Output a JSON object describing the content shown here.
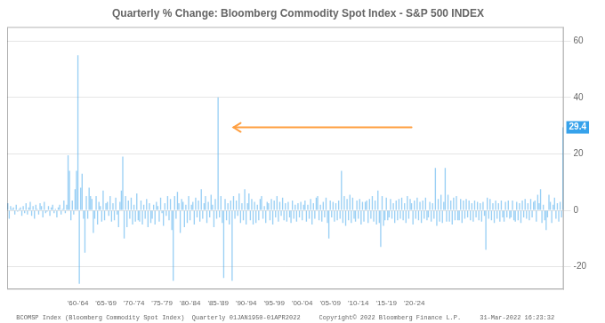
{
  "chart_data": {
    "type": "bar",
    "title": "Quarterly % Change: Bloomberg Commodity Spot Index - S&P 500 INDEX",
    "xlabel": "BCOMSP Index (Bloomberg Commodity Spot Index)  Quarterly 01JAN1950-01APR2022     Copyright© 2022 Bloomberg Finance L.P.     31-Mar-2022 16:23:32",
    "categories": [
      null,
      null,
      null,
      null,
      null,
      null,
      null,
      null,
      null,
      null,
      null,
      null,
      null,
      null,
      null,
      null,
      null,
      null,
      null,
      null,
      null,
      null,
      null,
      null,
      null,
      null,
      null,
      null,
      null,
      null,
      null,
      null,
      null,
      null,
      null,
      null,
      null,
      null,
      null,
      null,
      null,
      null,
      null,
      null,
      null,
      null,
      null,
      null,
      null,
      null,
      "'60-'64",
      null,
      null,
      null,
      null,
      null,
      null,
      null,
      null,
      null,
      null,
      null,
      null,
      null,
      null,
      null,
      null,
      null,
      null,
      null,
      "'65-'69",
      null,
      null,
      null,
      null,
      null,
      null,
      null,
      null,
      null,
      null,
      null,
      null,
      null,
      null,
      null,
      null,
      null,
      null,
      null,
      "'70-'74",
      null,
      null,
      null,
      null,
      null,
      null,
      null,
      null,
      null,
      null,
      null,
      null,
      null,
      null,
      null,
      null,
      null,
      null,
      null,
      "'75-'79",
      null,
      null,
      null,
      null,
      null,
      null,
      null,
      null,
      null,
      null,
      null,
      null,
      null,
      null,
      null,
      null,
      null,
      null,
      null,
      "'80-'84",
      null,
      null,
      null,
      null,
      null,
      null,
      null,
      null,
      null,
      null,
      null,
      null,
      null,
      null,
      null,
      null,
      null,
      null,
      null,
      "'85-'89",
      null,
      null,
      null,
      null,
      null,
      null,
      null,
      null,
      null,
      null,
      null,
      null,
      null,
      null,
      null,
      null,
      null,
      null,
      null,
      "'90-'94",
      null,
      null,
      null,
      null,
      null,
      null,
      null,
      null,
      null,
      null,
      null,
      null,
      null,
      null,
      null,
      null,
      null,
      null,
      null,
      "'95-'99",
      null,
      null,
      null,
      null,
      null,
      null,
      null,
      null,
      null,
      null,
      null,
      null,
      null,
      null,
      null,
      null,
      null,
      null,
      null,
      "'00-'04",
      null,
      null,
      null,
      null,
      null,
      null,
      null,
      null,
      null,
      null,
      null,
      null,
      null,
      null,
      null,
      null,
      null,
      null,
      null,
      "'05-'09",
      null,
      null,
      null,
      null,
      null,
      null,
      null,
      null,
      null,
      null,
      null,
      null,
      null,
      null,
      null,
      null,
      null,
      null,
      null,
      "'10-'14",
      null,
      null,
      null,
      null,
      null,
      null,
      null,
      null,
      null,
      null,
      null,
      null,
      null,
      null,
      null,
      null,
      null,
      null,
      null,
      "'15-'19",
      null,
      null,
      null,
      null,
      null,
      null,
      null,
      null,
      null,
      null,
      null,
      null,
      null,
      null,
      null,
      null,
      null,
      null,
      null,
      "'20-'24",
      null,
      null,
      null,
      null,
      null,
      null,
      null,
      null,
      null,
      null,
      null,
      null,
      null,
      null,
      null,
      null,
      null,
      null,
      null,
      null,
      null,
      null,
      null,
      null,
      null,
      null,
      null,
      null,
      null,
      null,
      null,
      null,
      null,
      null,
      null,
      null,
      null,
      null,
      null,
      null,
      null,
      null,
      null,
      null,
      null,
      null,
      null,
      null,
      null,
      null,
      null,
      null,
      null,
      null,
      null,
      null,
      null,
      null,
      null,
      null,
      null,
      null,
      null,
      null,
      null,
      null,
      null,
      null,
      null,
      null,
      null,
      null,
      null,
      null,
      null,
      null,
      null,
      null,
      null,
      null,
      null,
      null,
      null,
      null,
      null,
      null,
      null,
      null,
      null,
      null,
      null,
      null,
      null,
      null,
      null,
      null,
      null,
      null,
      null,
      null,
      null,
      null,
      null,
      null,
      null,
      null
    ],
    "values": [
      2.5,
      -3.0,
      1.5,
      0.5,
      1.0,
      -1.5,
      2.0,
      -0.5,
      0.5,
      1.0,
      -2.0,
      1.5,
      -1.0,
      2.5,
      -1.5,
      1.0,
      3.0,
      -2.0,
      1.5,
      -3.0,
      2.0,
      0.5,
      -1.5,
      2.5,
      1.5,
      -2.5,
      3.0,
      -1.0,
      -0.5,
      1.5,
      -2.0,
      1.0,
      2.0,
      -1.0,
      0.5,
      -2.5,
      1.0,
      2.0,
      -1.5,
      0.5,
      3.5,
      -1.0,
      2.0,
      19.5,
      14.0,
      -3.5,
      3.5,
      -1.5,
      7.5,
      14.0,
      55.0,
      -26.0,
      8.0,
      13.0,
      -3.0,
      -15.0,
      5.0,
      -3.0,
      8.0,
      5.0,
      4.0,
      -8.0,
      -3.0,
      5.0,
      -5.0,
      3.0,
      1.5,
      -4.0,
      7.0,
      -3.5,
      2.5,
      3.0,
      -2.0,
      5.0,
      -4.0,
      2.5,
      -3.5,
      4.5,
      -1.5,
      -6.0,
      3.0,
      7.0,
      19.0,
      -10.0,
      5.0,
      -6.0,
      3.5,
      -3.0,
      4.5,
      -5.0,
      2.0,
      -4.0,
      6.0,
      -3.5,
      -4.0,
      3.5,
      -5.0,
      2.0,
      -3.0,
      4.0,
      -6.0,
      2.5,
      -4.5,
      -3.0,
      2.0,
      -5.0,
      3.0,
      1.5,
      -4.0,
      4.5,
      -1.0,
      -5.5,
      2.5,
      -2.0,
      5.0,
      -3.5,
      4.0,
      -7.0,
      -25.0,
      5.0,
      -3.0,
      6.5,
      2.5,
      -8.0,
      4.0,
      3.0,
      -6.0,
      2.0,
      -4.5,
      5.0,
      -3.5,
      2.0,
      3.0,
      -5.0,
      4.5,
      -2.5,
      3.5,
      -4.0,
      7.5,
      -3.0,
      2.5,
      5.0,
      -4.5,
      3.0,
      -2.5,
      5.5,
      2.0,
      -6.0,
      4.0,
      -3.0,
      40.0,
      -2.5,
      5.0,
      -4.5,
      -24.0,
      4.0,
      -3.5,
      2.5,
      -5.0,
      3.5,
      -25.0,
      5.0,
      -3.0,
      3.5,
      -2.0,
      6.0,
      -4.5,
      2.5,
      -3.5,
      7.5,
      -5.0,
      2.5,
      6.0,
      -3.5,
      4.0,
      -5.0,
      3.0,
      -4.5,
      2.0,
      -3.5,
      4.0,
      5.0,
      -3.0,
      1.5,
      -4.5,
      3.0,
      2.5,
      -3.5,
      4.0,
      -5.0,
      3.5,
      -2.5,
      5.0,
      -4.0,
      3.0,
      -2.0,
      4.5,
      -3.5,
      2.5,
      -4.0,
      3.0,
      -2.5,
      -4.5,
      3.5,
      -3.0,
      2.0,
      -4.0,
      2.5,
      -2.5,
      3.0,
      -3.5,
      2.0,
      3.5,
      -4.0,
      2.0,
      -3.0,
      4.0,
      -5.0,
      2.5,
      -3.0,
      4.5,
      5.0,
      -3.5,
      2.0,
      -4.0,
      3.0,
      -2.5,
      4.5,
      -4.5,
      -10.0,
      3.5,
      -2.5,
      3.0,
      -4.0,
      2.5,
      -3.5,
      3.5,
      -3.0,
      14.0,
      -4.5,
      5.0,
      -5.5,
      4.0,
      -3.5,
      5.5,
      -4.5,
      4.5,
      -3.0,
      -4.0,
      3.5,
      -3.0,
      4.0,
      -5.0,
      3.0,
      -4.0,
      3.0,
      3.5,
      -4.5,
      4.0,
      -3.0,
      5.0,
      -4.0,
      3.5,
      -5.0,
      7.0,
      -4.5,
      -13.0,
      5.0,
      -5.5,
      -3.5,
      4.5,
      -3.5,
      -2.5,
      4.0,
      -3.0,
      2.5,
      -4.5,
      3.5,
      -3.5,
      4.0,
      -3.0,
      4.5,
      -3.5,
      2.5,
      -4.5,
      5.0,
      -3.0,
      4.0,
      2.5,
      -5.0,
      3.5,
      -3.0,
      4.5,
      -3.5,
      3.0,
      -4.5,
      3.5,
      -3.0,
      4.5,
      -3.5,
      -2.5,
      3.0,
      -4.0,
      2.5,
      -3.0,
      15.0,
      -5.5,
      4.0,
      -4.0,
      5.5,
      -4.5,
      3.0,
      15.0,
      -4.0,
      5.5,
      -4.0,
      3.5,
      -5.0,
      4.5,
      -3.5,
      5.0,
      -3.5,
      -3.5,
      4.0,
      -4.5,
      3.5,
      -3.0,
      4.0,
      -2.5,
      3.5,
      -3.5,
      2.5,
      -4.0,
      3.5,
      -2.5,
      3.0,
      -3.5,
      2.5,
      -4.0,
      3.0,
      -2.0,
      -14.0,
      4.5,
      -3.0,
      4.0,
      -3.5,
      2.5,
      -4.5,
      3.5,
      -3.0,
      2.5,
      -4.0,
      3.5,
      -2.5,
      -4.0,
      3.0,
      -2.5,
      3.5,
      -3.0,
      -2.5,
      3.5,
      -3.5,
      -4.0,
      3.0,
      -3.5,
      2.5,
      -4.5,
      3.5,
      -2.5,
      4.0,
      -3.0,
      2.5,
      -3.5,
      4.0,
      -2.5,
      3.0,
      3.5,
      -4.0,
      5.5,
      2.5,
      7.5,
      -4.5,
      2.0,
      -3.5,
      -7.0,
      -2.5,
      5.5,
      3.0,
      -4.5,
      2.0,
      4.5,
      -3.0,
      2.5,
      -4.0,
      3.0,
      -2.5,
      29.4
    ],
    "ylim": [
      -28,
      65
    ],
    "yticks": [
      -20,
      0,
      20,
      40,
      60
    ],
    "grid": true,
    "annotations": [
      {
        "text": "29.4",
        "y": 29.4
      }
    ],
    "arrow": {
      "y": 29.4,
      "x_from": 288,
      "x_to": 161
    }
  }
}
